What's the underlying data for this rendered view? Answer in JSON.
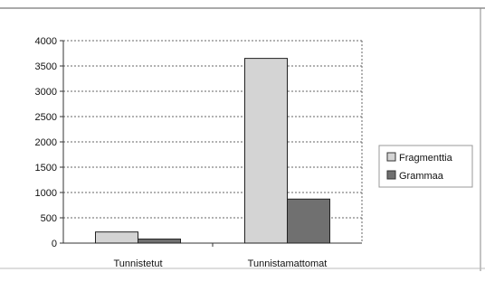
{
  "chart_data": {
    "type": "bar",
    "categories": [
      "Tunnistetut",
      "Tunnistamattomat"
    ],
    "series": [
      {
        "name": "Fragmenttia",
        "values": [
          220,
          3650
        ],
        "color": "#d4d4d4"
      },
      {
        "name": "Grammaa",
        "values": [
          80,
          870
        ],
        "color": "#707070"
      }
    ],
    "ylim": [
      0,
      4000
    ],
    "yticks": [
      0,
      500,
      1000,
      1500,
      2000,
      2500,
      3000,
      3500,
      4000
    ],
    "ytick_labels": [
      "0",
      "500",
      "1000",
      "1500",
      "2000",
      "2500",
      "3000",
      "3500",
      "4000"
    ],
    "grid": true,
    "legend_position": "right"
  }
}
